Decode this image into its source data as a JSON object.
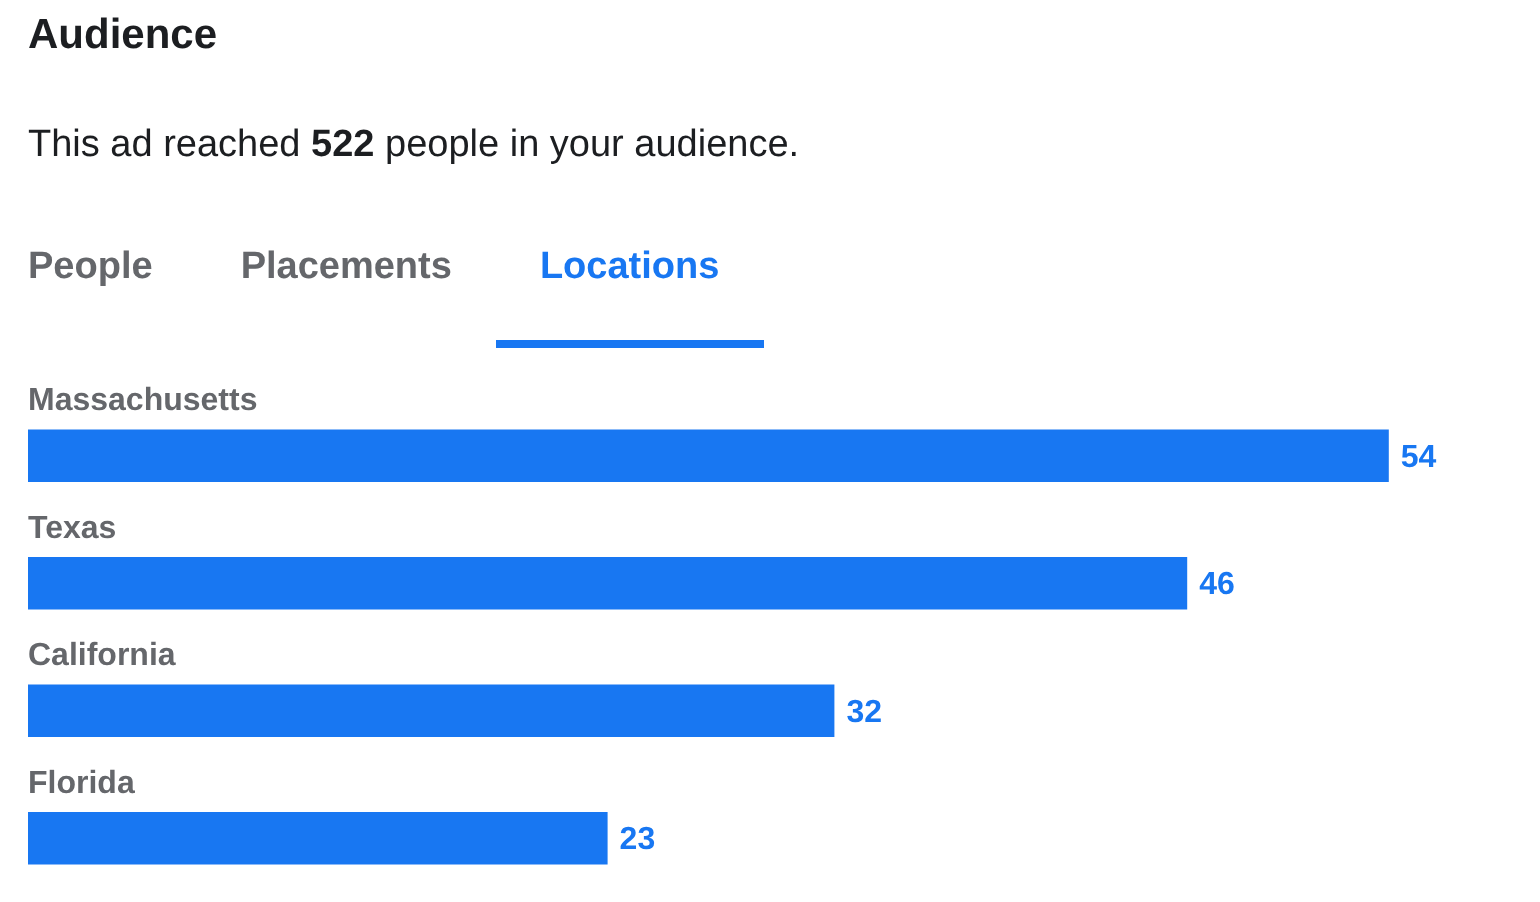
{
  "chart_data": {
    "type": "bar",
    "orientation": "horizontal",
    "title": "Audience",
    "subtitle": "This ad reached 522 people in your audience.",
    "annotations": [
      "People",
      "Placements",
      "Locations"
    ],
    "categories": [
      "Massachusetts",
      "Texas",
      "California",
      "Florida"
    ],
    "values": [
      54,
      46,
      32,
      23
    ],
    "color": "#1877f2",
    "data_labels": true
  }
}
